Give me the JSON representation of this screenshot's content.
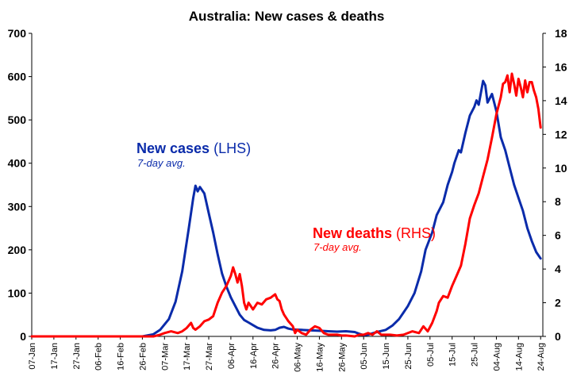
{
  "chart_data": {
    "type": "line",
    "title": "Australia: New cases & deaths",
    "x_tick_labels": [
      "07-Jan",
      "17-Jan",
      "27-Jan",
      "06-Feb",
      "16-Feb",
      "26-Feb",
      "07-Mar",
      "17-Mar",
      "27-Mar",
      "06-Apr",
      "16-Apr",
      "26-Apr",
      "06-May",
      "16-May",
      "26-May",
      "05-Jun",
      "15-Jun",
      "25-Jun",
      "05-Jul",
      "15-Jul",
      "25-Jul",
      "04-Aug",
      "14-Aug",
      "24-Aug"
    ],
    "x_range_days": [
      0,
      231
    ],
    "y_left": {
      "ticks": [
        "0",
        "100",
        "200",
        "300",
        "400",
        "500",
        "600",
        "700"
      ],
      "min": 0,
      "max": 700
    },
    "y_right": {
      "ticks": [
        "0",
        "2",
        "4",
        "6",
        "8",
        "10",
        "12",
        "14",
        "16",
        "18"
      ],
      "min": 0,
      "max": 18
    },
    "annotations": {
      "cases_label_bold": "New cases",
      "cases_label_rest": " (LHS)",
      "cases_sub": "7-day avg.",
      "deaths_label_bold": "New deaths",
      "deaths_label_rest": " (RHS)",
      "deaths_sub": "7-day avg."
    },
    "series": [
      {
        "name": "New cases",
        "axis": "left",
        "color": "#0A2BAA",
        "points": [
          [
            0,
            0
          ],
          [
            30,
            0
          ],
          [
            50,
            0
          ],
          [
            55,
            5
          ],
          [
            58,
            15
          ],
          [
            62,
            40
          ],
          [
            65,
            80
          ],
          [
            68,
            150
          ],
          [
            71,
            250
          ],
          [
            73,
            320
          ],
          [
            74,
            348
          ],
          [
            75,
            335
          ],
          [
            76,
            345
          ],
          [
            78,
            330
          ],
          [
            80,
            285
          ],
          [
            82,
            240
          ],
          [
            84,
            190
          ],
          [
            86,
            145
          ],
          [
            88,
            115
          ],
          [
            90,
            90
          ],
          [
            92,
            70
          ],
          [
            94,
            50
          ],
          [
            96,
            38
          ],
          [
            98,
            32
          ],
          [
            100,
            26
          ],
          [
            102,
            20
          ],
          [
            105,
            15
          ],
          [
            108,
            14
          ],
          [
            110,
            15
          ],
          [
            112,
            20
          ],
          [
            114,
            22
          ],
          [
            116,
            18
          ],
          [
            118,
            16
          ],
          [
            122,
            15
          ],
          [
            126,
            14
          ],
          [
            130,
            13
          ],
          [
            134,
            12
          ],
          [
            138,
            11
          ],
          [
            142,
            12
          ],
          [
            146,
            10
          ],
          [
            148,
            6
          ],
          [
            150,
            3
          ],
          [
            152,
            4
          ],
          [
            156,
            10
          ],
          [
            160,
            15
          ],
          [
            163,
            25
          ],
          [
            166,
            40
          ],
          [
            170,
            70
          ],
          [
            173,
            100
          ],
          [
            176,
            150
          ],
          [
            178,
            200
          ],
          [
            181,
            240
          ],
          [
            183,
            280
          ],
          [
            186,
            310
          ],
          [
            188,
            350
          ],
          [
            190,
            380
          ],
          [
            191,
            400
          ],
          [
            193,
            430
          ],
          [
            194,
            425
          ],
          [
            196,
            470
          ],
          [
            198,
            510
          ],
          [
            200,
            530
          ],
          [
            201,
            545
          ],
          [
            202,
            535
          ],
          [
            204,
            590
          ],
          [
            205,
            580
          ],
          [
            206,
            540
          ],
          [
            208,
            560
          ],
          [
            210,
            520
          ],
          [
            212,
            460
          ],
          [
            214,
            430
          ],
          [
            216,
            390
          ],
          [
            218,
            350
          ],
          [
            220,
            320
          ],
          [
            222,
            290
          ],
          [
            224,
            250
          ],
          [
            226,
            220
          ],
          [
            228,
            195
          ],
          [
            230,
            180
          ]
        ]
      },
      {
        "name": "New deaths",
        "axis": "right",
        "color": "#FF0000",
        "points": [
          [
            0,
            0
          ],
          [
            55,
            0
          ],
          [
            58,
            0.1
          ],
          [
            60,
            0.2
          ],
          [
            63,
            0.3
          ],
          [
            66,
            0.2
          ],
          [
            68,
            0.3
          ],
          [
            70,
            0.5
          ],
          [
            72,
            0.8
          ],
          [
            73,
            0.5
          ],
          [
            74,
            0.4
          ],
          [
            76,
            0.6
          ],
          [
            78,
            0.9
          ],
          [
            80,
            1.0
          ],
          [
            82,
            1.2
          ],
          [
            84,
            2.0
          ],
          [
            86,
            2.6
          ],
          [
            88,
            3.0
          ],
          [
            90,
            3.6
          ],
          [
            91,
            4.1
          ],
          [
            92,
            3.7
          ],
          [
            93,
            3.2
          ],
          [
            94,
            3.7
          ],
          [
            95,
            3.0
          ],
          [
            96,
            2.0
          ],
          [
            97,
            1.6
          ],
          [
            98,
            2.0
          ],
          [
            100,
            1.6
          ],
          [
            102,
            2.0
          ],
          [
            104,
            1.9
          ],
          [
            106,
            2.2
          ],
          [
            108,
            2.3
          ],
          [
            110,
            2.5
          ],
          [
            111,
            2.2
          ],
          [
            112,
            2.1
          ],
          [
            113,
            1.6
          ],
          [
            114,
            1.3
          ],
          [
            116,
            0.9
          ],
          [
            118,
            0.6
          ],
          [
            119,
            0.2
          ],
          [
            120,
            0.4
          ],
          [
            122,
            0.2
          ],
          [
            124,
            0.1
          ],
          [
            126,
            0.4
          ],
          [
            128,
            0.6
          ],
          [
            130,
            0.5
          ],
          [
            132,
            0.2
          ],
          [
            134,
            0.1
          ],
          [
            136,
            0.1
          ],
          [
            138,
            0.1
          ],
          [
            140,
            0.05
          ],
          [
            142,
            0.05
          ],
          [
            146,
            0
          ],
          [
            148,
            0.1
          ],
          [
            150,
            0.1
          ],
          [
            152,
            0.2
          ],
          [
            154,
            0.1
          ],
          [
            156,
            0.3
          ],
          [
            158,
            0.1
          ],
          [
            160,
            0.1
          ],
          [
            162,
            0.1
          ],
          [
            165,
            0.05
          ],
          [
            168,
            0.1
          ],
          [
            172,
            0.3
          ],
          [
            175,
            0.2
          ],
          [
            177,
            0.6
          ],
          [
            179,
            0.3
          ],
          [
            181,
            0.8
          ],
          [
            183,
            1.5
          ],
          [
            184,
            2.0
          ],
          [
            186,
            2.4
          ],
          [
            188,
            2.3
          ],
          [
            190,
            3.0
          ],
          [
            192,
            3.6
          ],
          [
            194,
            4.2
          ],
          [
            196,
            5.5
          ],
          [
            198,
            7.0
          ],
          [
            200,
            7.8
          ],
          [
            202,
            8.5
          ],
          [
            204,
            9.5
          ],
          [
            206,
            10.5
          ],
          [
            208,
            11.8
          ],
          [
            210,
            13.2
          ],
          [
            212,
            14.2
          ],
          [
            213,
            15.0
          ],
          [
            214,
            15.1
          ],
          [
            215,
            15.5
          ],
          [
            216,
            14.5
          ],
          [
            217,
            15.6
          ],
          [
            218,
            15.0
          ],
          [
            219,
            14.3
          ],
          [
            220,
            15.3
          ],
          [
            221,
            14.8
          ],
          [
            222,
            14.2
          ],
          [
            223,
            15.2
          ],
          [
            224,
            14.5
          ],
          [
            225,
            15.1
          ],
          [
            226,
            15.1
          ],
          [
            227,
            14.6
          ],
          [
            228,
            14.2
          ],
          [
            229,
            13.5
          ],
          [
            230,
            12.4
          ]
        ]
      }
    ]
  }
}
